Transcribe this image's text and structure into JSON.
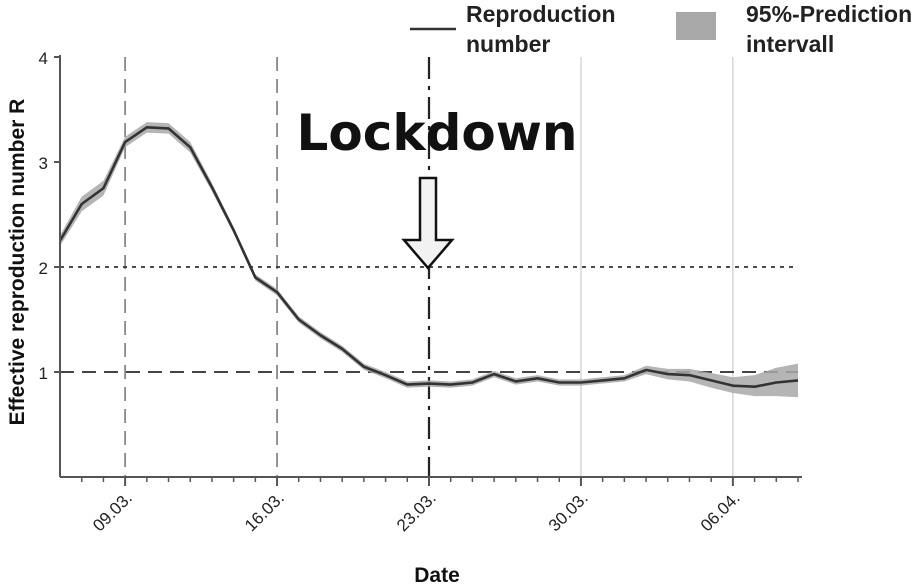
{
  "chart_data": {
    "type": "line",
    "title": "",
    "xlabel": "Date",
    "ylabel": "Effective reproduction number R",
    "x_unit": "day of March 2020 (32 = 01.04.)",
    "xlim": [
      6,
      40
    ],
    "ylim": [
      0,
      4
    ],
    "yticks": [
      1,
      2,
      3,
      4
    ],
    "xticks": [
      {
        "day": 9,
        "label": "09.03."
      },
      {
        "day": 16,
        "label": "16.03."
      },
      {
        "day": 23,
        "label": "23.03."
      },
      {
        "day": 30,
        "label": "30.03."
      },
      {
        "day": 37,
        "label": "06.04."
      }
    ],
    "legend": {
      "placement": "top-right",
      "line_label": "Reproduction number",
      "band_label": "95%-Prediction intervall"
    },
    "reference_lines": {
      "horizontal": [
        2,
        1
      ],
      "vertical": [
        9,
        16,
        23,
        30,
        37
      ]
    },
    "annotation": {
      "text": "Lockdown",
      "day": 23,
      "points_to": 2
    },
    "series": [
      {
        "name": "Reproduction number",
        "x": [
          6,
          7,
          8,
          9,
          10,
          11,
          12,
          13,
          14,
          15,
          16,
          17,
          18,
          19,
          20,
          21,
          22,
          23,
          24,
          25,
          26,
          27,
          28,
          29,
          30,
          31,
          32,
          33,
          34,
          35,
          36,
          37,
          38,
          39,
          40
        ],
        "values": [
          2.25,
          2.6,
          2.75,
          3.19,
          3.33,
          3.32,
          3.14,
          2.76,
          2.35,
          1.9,
          1.76,
          1.5,
          1.35,
          1.22,
          1.05,
          0.97,
          0.88,
          0.89,
          0.88,
          0.9,
          0.98,
          0.91,
          0.94,
          0.9,
          0.9,
          0.92,
          0.94,
          1.02,
          0.98,
          0.97,
          0.92,
          0.87,
          0.86,
          0.9,
          0.92
        ],
        "lower": [
          2.2,
          2.53,
          2.68,
          3.14,
          3.28,
          3.27,
          3.09,
          2.72,
          2.32,
          1.87,
          1.73,
          1.47,
          1.32,
          1.19,
          1.02,
          0.94,
          0.85,
          0.86,
          0.85,
          0.87,
          0.95,
          0.88,
          0.91,
          0.87,
          0.87,
          0.89,
          0.91,
          0.98,
          0.93,
          0.91,
          0.85,
          0.8,
          0.77,
          0.77,
          0.76
        ],
        "upper": [
          2.3,
          2.67,
          2.82,
          3.24,
          3.38,
          3.37,
          3.19,
          2.8,
          2.38,
          1.93,
          1.79,
          1.53,
          1.38,
          1.25,
          1.08,
          1.0,
          0.91,
          0.92,
          0.91,
          0.93,
          1.01,
          0.94,
          0.97,
          0.93,
          0.93,
          0.95,
          0.97,
          1.06,
          1.03,
          1.03,
          0.99,
          0.95,
          0.97,
          1.04,
          1.08
        ]
      }
    ],
    "colors": {
      "line": "#333333",
      "band": "#a8a8a8"
    }
  }
}
